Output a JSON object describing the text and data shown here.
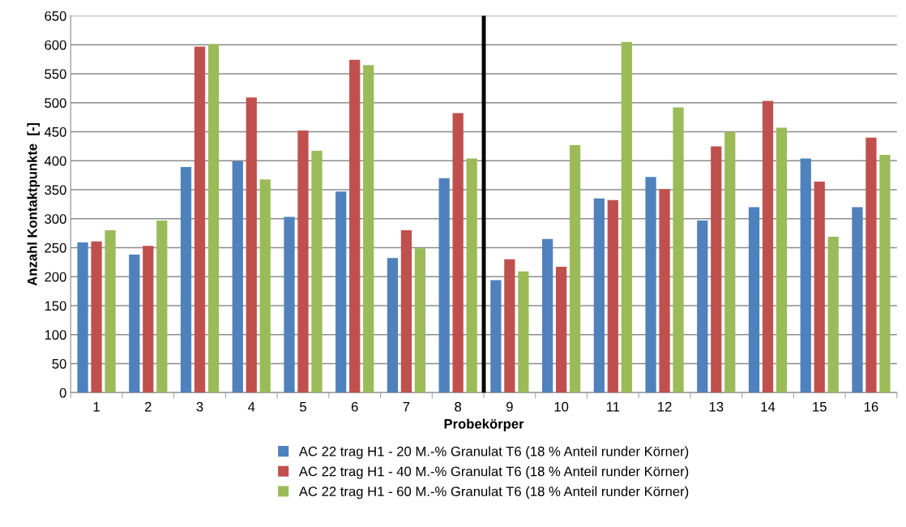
{
  "chart_data": {
    "type": "bar",
    "xlabel": "Probekörper",
    "ylabel": "Anzahl Kontaktpunkte  [-]",
    "categories": [
      "1",
      "2",
      "3",
      "4",
      "5",
      "6",
      "7",
      "8",
      "9",
      "10",
      "11",
      "12",
      "13",
      "14",
      "15",
      "16"
    ],
    "series": [
      {
        "name": "AC 22 trag H1 - 20 M.-% Granulat T6 (18 % Anteil runder Körner)",
        "color": "#4f81bd",
        "values": [
          259,
          238,
          389,
          399,
          303,
          347,
          232,
          370,
          194,
          265,
          335,
          372,
          297,
          320,
          404,
          320
        ]
      },
      {
        "name": "AC 22 trag H1 - 40 M.-% Granulat T6 (18 % Anteil runder Körner)",
        "color": "#c0504d",
        "values": [
          261,
          253,
          597,
          509,
          452,
          574,
          280,
          482,
          230,
          217,
          332,
          351,
          425,
          503,
          364,
          440
        ]
      },
      {
        "name": "AC 22 trag H1 - 60 M.-% Granulat T6 (18 % Anteil runder Körner)",
        "color": "#9bbb59",
        "values": [
          280,
          297,
          601,
          368,
          417,
          565,
          249,
          404,
          209,
          427,
          605,
          492,
          450,
          457,
          269,
          410
        ]
      }
    ],
    "ylim": [
      0,
      650
    ],
    "yticks": [
      0,
      50,
      100,
      150,
      200,
      250,
      300,
      350,
      400,
      450,
      500,
      550,
      600,
      650
    ],
    "grid": "y",
    "legend": "bottom",
    "ref_lines": [
      {
        "axis": "x",
        "value": "8",
        "color": "#000000"
      }
    ]
  }
}
